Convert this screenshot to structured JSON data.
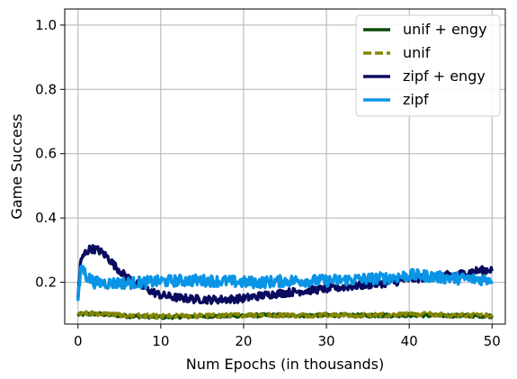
{
  "chart_data": {
    "type": "line",
    "title": "",
    "xlabel": "Num Epochs (in thousands)",
    "ylabel": "Game Success",
    "xlim": [
      -1.6,
      51.6
    ],
    "ylim": [
      0.07,
      1.05
    ],
    "xticks": [
      0,
      10,
      20,
      30,
      40,
      50
    ],
    "yticks": [
      0.2,
      0.4,
      0.6,
      0.8,
      1.0
    ],
    "xtick_labels": [
      "0",
      "10",
      "20",
      "30",
      "40",
      "50"
    ],
    "ytick_labels": [
      "0.2",
      "0.4",
      "0.6",
      "0.8",
      "1.0"
    ],
    "grid": true,
    "legend_position": "top-right",
    "series": [
      {
        "name": "unif + engy",
        "color": "#0b4a0b",
        "style": "solid",
        "points": [
          [
            0,
            0.1
          ],
          [
            2,
            0.102
          ],
          [
            4,
            0.099
          ],
          [
            6,
            0.095
          ],
          [
            8,
            0.094
          ],
          [
            10,
            0.092
          ],
          [
            12,
            0.093
          ],
          [
            14,
            0.094
          ],
          [
            16,
            0.095
          ],
          [
            18,
            0.095
          ],
          [
            20,
            0.097
          ],
          [
            22,
            0.097
          ],
          [
            24,
            0.098
          ],
          [
            26,
            0.097
          ],
          [
            28,
            0.097
          ],
          [
            30,
            0.098
          ],
          [
            32,
            0.097
          ],
          [
            34,
            0.097
          ],
          [
            36,
            0.097
          ],
          [
            38,
            0.097
          ],
          [
            40,
            0.098
          ],
          [
            42,
            0.097
          ],
          [
            44,
            0.097
          ],
          [
            46,
            0.096
          ],
          [
            48,
            0.096
          ],
          [
            50,
            0.095
          ]
        ]
      },
      {
        "name": "unif",
        "color": "#868600",
        "style": "dashed",
        "points": [
          [
            0,
            0.105
          ],
          [
            2,
            0.103
          ],
          [
            4,
            0.1
          ],
          [
            6,
            0.097
          ],
          [
            8,
            0.096
          ],
          [
            10,
            0.094
          ],
          [
            12,
            0.095
          ],
          [
            14,
            0.096
          ],
          [
            16,
            0.096
          ],
          [
            18,
            0.097
          ],
          [
            20,
            0.098
          ],
          [
            22,
            0.099
          ],
          [
            24,
            0.098
          ],
          [
            26,
            0.097
          ],
          [
            28,
            0.098
          ],
          [
            30,
            0.099
          ],
          [
            32,
            0.098
          ],
          [
            34,
            0.097
          ],
          [
            36,
            0.098
          ],
          [
            38,
            0.1
          ],
          [
            40,
            0.1
          ],
          [
            42,
            0.101
          ],
          [
            44,
            0.099
          ],
          [
            46,
            0.098
          ],
          [
            48,
            0.098
          ],
          [
            50,
            0.097
          ]
        ]
      },
      {
        "name": "zipf + engy",
        "color": "#0a0a5e",
        "style": "solid",
        "points": [
          [
            0,
            0.15
          ],
          [
            0.3,
            0.26
          ],
          [
            0.8,
            0.29
          ],
          [
            1.5,
            0.305
          ],
          [
            2.5,
            0.3
          ],
          [
            3.5,
            0.28
          ],
          [
            4.5,
            0.25
          ],
          [
            5.5,
            0.225
          ],
          [
            6.5,
            0.205
          ],
          [
            7.5,
            0.19
          ],
          [
            9,
            0.17
          ],
          [
            10,
            0.16
          ],
          [
            12,
            0.152
          ],
          [
            14,
            0.148
          ],
          [
            16,
            0.146
          ],
          [
            18,
            0.147
          ],
          [
            20,
            0.15
          ],
          [
            22,
            0.158
          ],
          [
            24,
            0.165
          ],
          [
            26,
            0.17
          ],
          [
            28,
            0.175
          ],
          [
            30,
            0.18
          ],
          [
            32,
            0.185
          ],
          [
            34,
            0.19
          ],
          [
            36,
            0.195
          ],
          [
            38,
            0.2
          ],
          [
            40,
            0.21
          ],
          [
            42,
            0.215
          ],
          [
            44,
            0.22
          ],
          [
            46,
            0.225
          ],
          [
            48,
            0.235
          ],
          [
            50,
            0.24
          ]
        ]
      },
      {
        "name": "zipf",
        "color": "#0a94e6",
        "style": "solid",
        "points": [
          [
            0,
            0.14
          ],
          [
            0.4,
            0.255
          ],
          [
            1,
            0.22
          ],
          [
            2,
            0.2
          ],
          [
            3,
            0.198
          ],
          [
            4,
            0.197
          ],
          [
            5,
            0.198
          ],
          [
            6,
            0.198
          ],
          [
            8,
            0.2
          ],
          [
            10,
            0.203
          ],
          [
            12,
            0.205
          ],
          [
            14,
            0.206
          ],
          [
            16,
            0.205
          ],
          [
            18,
            0.203
          ],
          [
            20,
            0.2
          ],
          [
            22,
            0.2
          ],
          [
            24,
            0.203
          ],
          [
            26,
            0.205
          ],
          [
            28,
            0.205
          ],
          [
            30,
            0.205
          ],
          [
            32,
            0.207
          ],
          [
            34,
            0.21
          ],
          [
            36,
            0.212
          ],
          [
            38,
            0.215
          ],
          [
            40,
            0.222
          ],
          [
            42,
            0.22
          ],
          [
            44,
            0.215
          ],
          [
            46,
            0.212
          ],
          [
            48,
            0.21
          ],
          [
            50,
            0.21
          ]
        ]
      }
    ]
  }
}
